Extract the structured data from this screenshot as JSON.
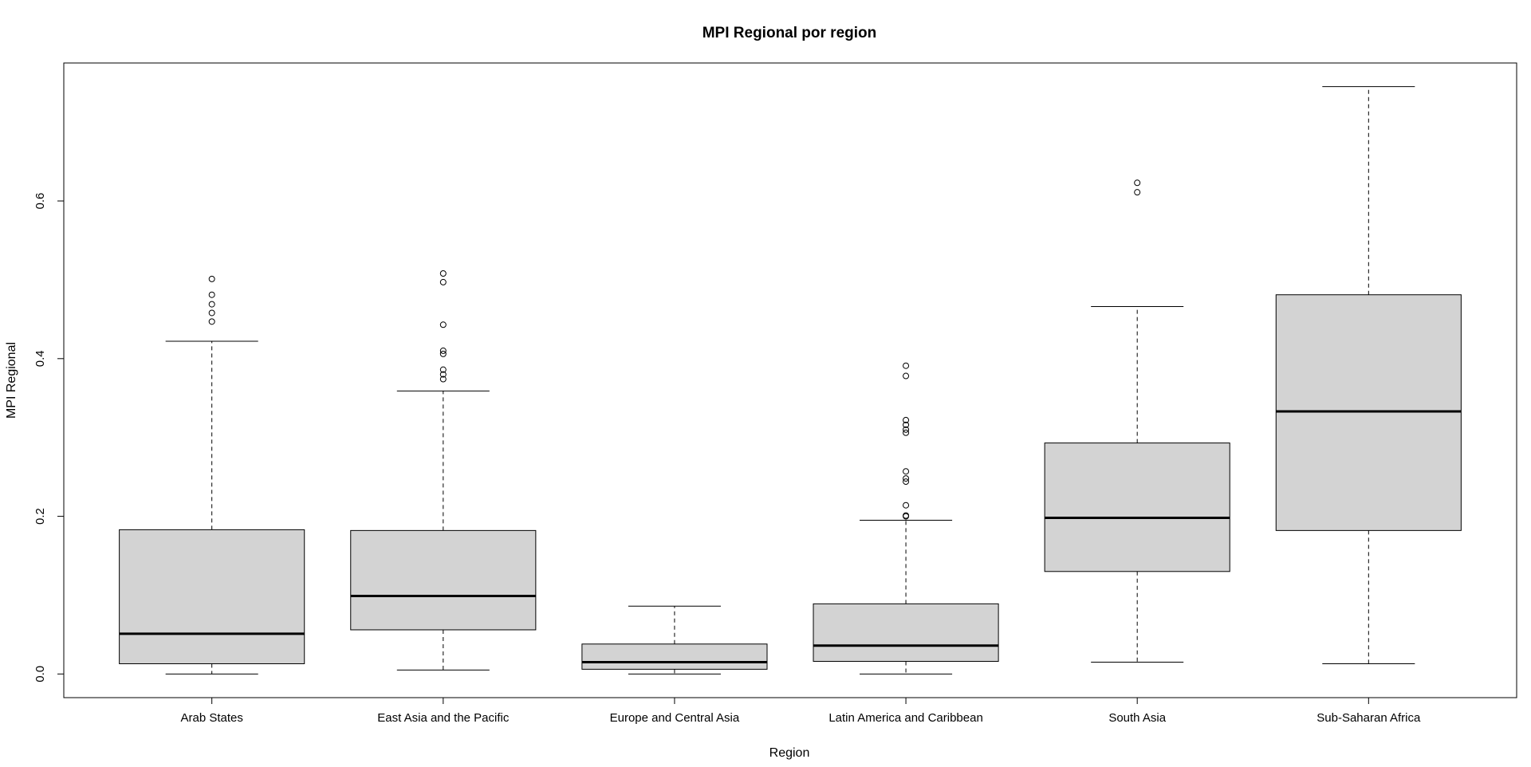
{
  "chart_data": {
    "type": "boxplot",
    "title": "MPI Regional por region",
    "xlabel": "Region",
    "ylabel": "MPI Regional",
    "ylim": [
      -0.03,
      0.775
    ],
    "y_ticks": [
      0.0,
      0.2,
      0.4,
      0.6
    ],
    "y_tick_labels": [
      "0.0",
      "0.2",
      "0.4",
      "0.6"
    ],
    "grid": false,
    "box_fill": "#d3d3d3",
    "categories": [
      "Arab States",
      "East Asia and the Pacific",
      "Europe and Central Asia",
      "Latin America and Caribbean",
      "South Asia",
      "Sub-Saharan Africa"
    ],
    "boxes": [
      {
        "name": "Arab States",
        "whisker_low": 0.0,
        "q1": 0.013,
        "median": 0.051,
        "q3": 0.183,
        "whisker_high": 0.422,
        "outliers": [
          0.447,
          0.458,
          0.469,
          0.481,
          0.501
        ]
      },
      {
        "name": "East Asia and the Pacific",
        "whisker_low": 0.005,
        "q1": 0.056,
        "median": 0.099,
        "q3": 0.182,
        "whisker_high": 0.359,
        "outliers": [
          0.374,
          0.38,
          0.386,
          0.406,
          0.41,
          0.443,
          0.497,
          0.508
        ]
      },
      {
        "name": "Europe and Central Asia",
        "whisker_low": 0.0,
        "q1": 0.006,
        "median": 0.015,
        "q3": 0.038,
        "whisker_high": 0.086,
        "outliers": []
      },
      {
        "name": "Latin America and Caribbean",
        "whisker_low": 0.0,
        "q1": 0.016,
        "median": 0.036,
        "q3": 0.089,
        "whisker_high": 0.195,
        "outliers": [
          0.2,
          0.201,
          0.214,
          0.244,
          0.248,
          0.257,
          0.306,
          0.31,
          0.316,
          0.322,
          0.378,
          0.391
        ]
      },
      {
        "name": "South Asia",
        "whisker_low": 0.015,
        "q1": 0.13,
        "median": 0.198,
        "q3": 0.293,
        "whisker_high": 0.466,
        "outliers": [
          0.611,
          0.623
        ]
      },
      {
        "name": "Sub-Saharan Africa",
        "whisker_low": 0.013,
        "q1": 0.182,
        "median": 0.333,
        "q3": 0.481,
        "whisker_high": 0.745,
        "outliers": []
      }
    ]
  }
}
